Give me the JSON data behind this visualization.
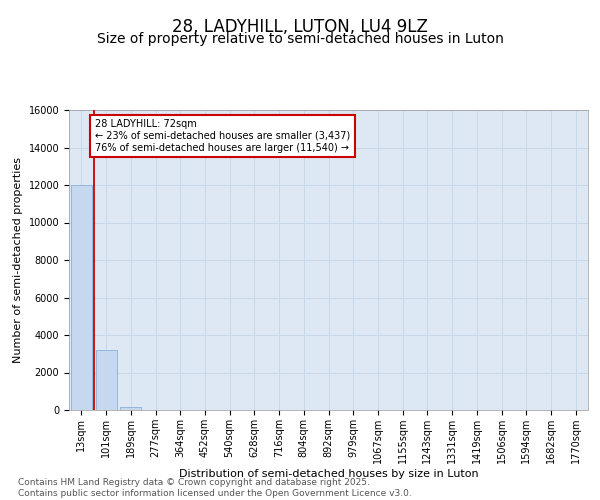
{
  "title": "28, LADYHILL, LUTON, LU4 9LZ",
  "subtitle": "Size of property relative to semi-detached houses in Luton",
  "xlabel": "Distribution of semi-detached houses by size in Luton",
  "ylabel": "Number of semi-detached properties",
  "categories": [
    "13sqm",
    "101sqm",
    "189sqm",
    "277sqm",
    "364sqm",
    "452sqm",
    "540sqm",
    "628sqm",
    "716sqm",
    "804sqm",
    "892sqm",
    "979sqm",
    "1067sqm",
    "1155sqm",
    "1243sqm",
    "1331sqm",
    "1419sqm",
    "1506sqm",
    "1594sqm",
    "1682sqm",
    "1770sqm"
  ],
  "values": [
    12000,
    3200,
    150,
    20,
    5,
    2,
    1,
    0,
    0,
    0,
    0,
    0,
    0,
    0,
    0,
    0,
    0,
    0,
    0,
    0,
    0
  ],
  "bar_color": "#c5d8f0",
  "bar_edge_color": "#8ab0d8",
  "grid_color": "#c8d8e8",
  "background_color": "#dde8f4",
  "vline_color": "#cc0000",
  "annotation_text": "28 LADYHILL: 72sqm\n← 23% of semi-detached houses are smaller (3,437)\n76% of semi-detached houses are larger (11,540) →",
  "annotation_box_color": "#cc0000",
  "ylim": [
    0,
    16000
  ],
  "yticks": [
    0,
    2000,
    4000,
    6000,
    8000,
    10000,
    12000,
    14000,
    16000
  ],
  "footer_text": "Contains HM Land Registry data © Crown copyright and database right 2025.\nContains public sector information licensed under the Open Government Licence v3.0.",
  "title_fontsize": 12,
  "subtitle_fontsize": 10,
  "label_fontsize": 8,
  "tick_fontsize": 7,
  "footer_fontsize": 6.5
}
